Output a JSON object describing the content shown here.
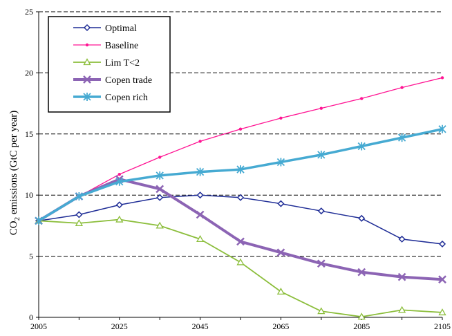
{
  "chart_data": {
    "type": "line",
    "x": [
      2005,
      2015,
      2025,
      2035,
      2045,
      2055,
      2065,
      2075,
      2085,
      2095,
      2105
    ],
    "x_ticks": [
      2005,
      2025,
      2045,
      2065,
      2085,
      2105
    ],
    "xlim": [
      2005,
      2105
    ],
    "ylim": [
      0,
      25
    ],
    "y_ticks": [
      0,
      5,
      10,
      15,
      20,
      25
    ],
    "ylabel_prefix": "CO",
    "ylabel_sub": "2",
    "ylabel_suffix": " emissions (GtC per year)",
    "grid": "horizontal dashed",
    "legend_position": "top-left",
    "series": [
      {
        "name": "Optimal",
        "color": "#1f2d96",
        "marker": "diamond",
        "values": [
          7.9,
          8.4,
          9.2,
          9.8,
          10.0,
          9.8,
          9.3,
          8.7,
          8.1,
          6.4,
          6.0
        ]
      },
      {
        "name": "Baseline",
        "color": "#ff1493",
        "marker": "dot",
        "values": [
          7.9,
          9.9,
          11.7,
          13.1,
          14.4,
          15.4,
          16.3,
          17.1,
          17.9,
          18.8,
          19.6
        ]
      },
      {
        "name": "Lim T<2",
        "color": "#8cbe3c",
        "marker": "triangle",
        "values": [
          7.9,
          7.7,
          8.0,
          7.5,
          6.4,
          4.5,
          2.1,
          0.5,
          0.05,
          0.6,
          0.4
        ]
      },
      {
        "name": "Copen trade",
        "color": "#8c64b4",
        "marker": "x",
        "values": [
          7.9,
          9.9,
          11.3,
          10.5,
          8.4,
          6.2,
          5.3,
          4.4,
          3.7,
          3.3,
          3.1
        ]
      },
      {
        "name": "Copen rich",
        "color": "#46aad2",
        "marker": "star",
        "values": [
          7.9,
          9.9,
          11.1,
          11.6,
          11.9,
          12.1,
          12.7,
          13.3,
          14.0,
          14.7,
          15.4
        ]
      }
    ]
  }
}
